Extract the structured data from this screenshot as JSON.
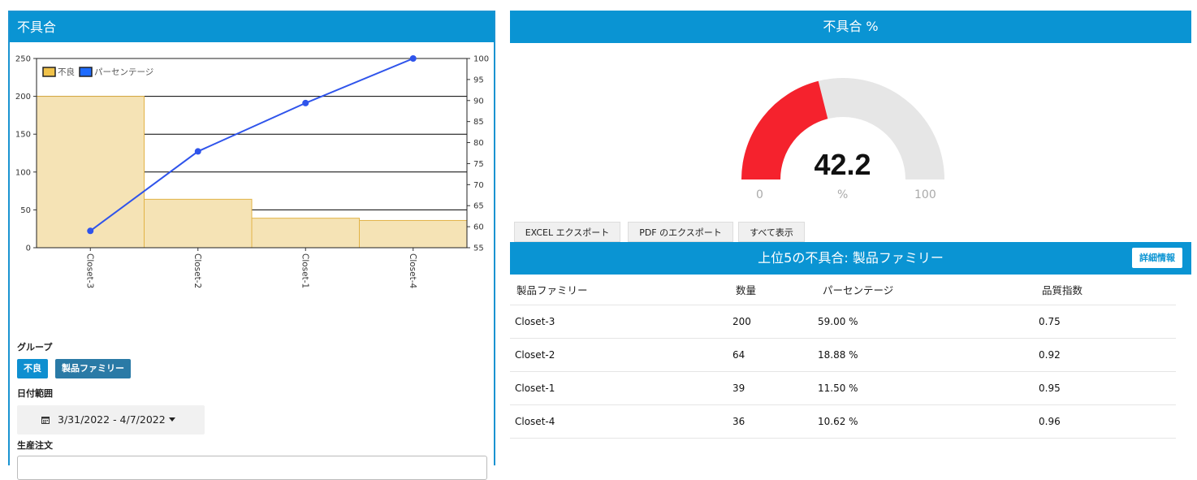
{
  "left_panel": {
    "title": "不具合",
    "group_label": "グループ",
    "group_buttons": [
      "不良",
      "製品ファミリー"
    ],
    "date_label": "日付範囲",
    "date_range": "3/31/2022 - 4/7/2022",
    "order_label": "生産注文"
  },
  "chart_data": {
    "type": "bar",
    "categories": [
      "Closet-3",
      "Closet-2",
      "Closet-1",
      "Closet-4"
    ],
    "series": [
      {
        "name": "不良",
        "type": "bar",
        "axis": "left",
        "values": [
          200,
          64,
          39,
          36
        ],
        "color": "#f5e3b5",
        "stroke": "#e2b346"
      },
      {
        "name": "パーセンテージ",
        "type": "line",
        "axis": "right",
        "values": [
          59.0,
          77.9,
          89.4,
          100.0
        ],
        "color": "#2f54eb"
      }
    ],
    "ylim_left": [
      0,
      250
    ],
    "yticks_left": [
      0,
      50,
      100,
      150,
      200,
      250
    ],
    "ylim_right": [
      55,
      100
    ],
    "yticks_right": [
      55,
      60,
      65,
      70,
      75,
      80,
      85,
      90,
      95,
      100
    ],
    "legend": "top-left",
    "legend_swatches": [
      "#f0c24a",
      "#1e6bff"
    ],
    "grid": true
  },
  "gauge": {
    "title": "不具合 %",
    "value": "42.2",
    "value_fraction": 0.422,
    "min_label": "0",
    "unit_label": "%",
    "max_label": "100",
    "fill_color": "#f5222d",
    "track_color": "#e6e6e6"
  },
  "exports": {
    "excel": "EXCEL エクスポート",
    "pdf": "PDF のエクスポート",
    "show_all": "すべて表示"
  },
  "top5": {
    "title": "上位5の不具合: 製品ファミリー",
    "detail_button": "詳細情報",
    "headers": [
      "製品ファミリー",
      "数量",
      "パーセンテージ",
      "品質指数"
    ],
    "rows": [
      {
        "family": "Closet-3",
        "qty": "200",
        "pct": "59.00 %",
        "quality": "0.75"
      },
      {
        "family": "Closet-2",
        "qty": "64",
        "pct": "18.88 %",
        "quality": "0.92"
      },
      {
        "family": "Closet-1",
        "qty": "39",
        "pct": "11.50 %",
        "quality": "0.95"
      },
      {
        "family": "Closet-4",
        "qty": "36",
        "pct": "10.62 %",
        "quality": "0.96"
      }
    ]
  }
}
